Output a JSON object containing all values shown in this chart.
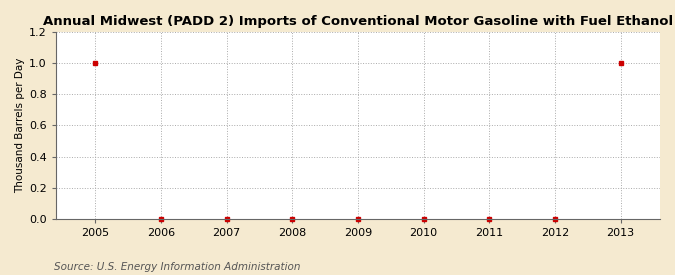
{
  "title": "Annual Midwest (PADD 2) Imports of Conventional Motor Gasoline with Fuel Ethanol",
  "ylabel": "Thousand Barrels per Day",
  "source": "Source: U.S. Energy Information Administration",
  "x_years": [
    2005,
    2006,
    2007,
    2008,
    2009,
    2010,
    2011,
    2012,
    2013
  ],
  "y_values": [
    1.0,
    0.0,
    0.0,
    0.0,
    0.0,
    0.0,
    0.0,
    0.0,
    1.0
  ],
  "xlim": [
    2004.4,
    2013.6
  ],
  "ylim": [
    0.0,
    1.2
  ],
  "yticks": [
    0.0,
    0.2,
    0.4,
    0.6,
    0.8,
    1.0,
    1.2
  ],
  "xticks": [
    2005,
    2006,
    2007,
    2008,
    2009,
    2010,
    2011,
    2012,
    2013
  ],
  "marker_color": "#cc0000",
  "plot_bg_color": "#ffffff",
  "outer_bg_color": "#f5ead0",
  "grid_color": "#aaaaaa",
  "title_fontsize": 9.5,
  "label_fontsize": 7.5,
  "tick_fontsize": 8.0,
  "source_fontsize": 7.5
}
